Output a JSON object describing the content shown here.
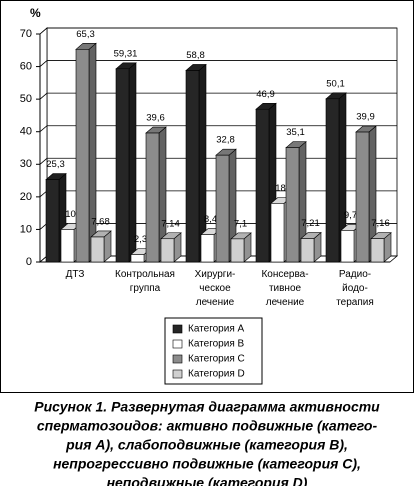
{
  "chart_data": {
    "type": "bar3d",
    "y_label": "%",
    "categories": [
      "ДТЗ",
      "Контрольная\nгруппа",
      "Хирурги-\nческое\nлечение",
      "Консерва-\nтивное\nлечение",
      "Радио-\nйодо-\nтерапия"
    ],
    "series": [
      {
        "name": "Категория A",
        "color": "#262626",
        "values": [
          25.3,
          59.31,
          58.8,
          46.9,
          50.1
        ],
        "value_labels": [
          "25,3",
          "59,31",
          "58,8",
          "46,9",
          "50,1"
        ]
      },
      {
        "name": "Категория B",
        "color": "#ffffff",
        "values": [
          10,
          2.3,
          8.4,
          18,
          9.7
        ],
        "value_labels": [
          "10",
          "2,3",
          "8,4",
          "18",
          "9,7"
        ]
      },
      {
        "name": "Категория C",
        "color": "#8c8c8c",
        "values": [
          65.3,
          39.6,
          32.8,
          35.1,
          39.9
        ],
        "value_labels": [
          "65,3",
          "39,6",
          "32,8",
          "35,1",
          "39,9"
        ]
      },
      {
        "name": "Категория D",
        "color": "#d0d0d0",
        "values": [
          7.68,
          7.14,
          7.1,
          7.21,
          7.16
        ],
        "value_labels": [
          "7,68",
          "7,14",
          "7,1",
          "7,21",
          "7,16"
        ]
      }
    ],
    "ylim": [
      0,
      70
    ],
    "yticks": [
      0,
      10,
      20,
      30,
      40,
      50,
      60,
      70
    ],
    "grid": true,
    "caption": [
      "Рисунок 1. Развернутая диаграмма активности",
      "сперматозоидов: активно подвижные (катего-",
      "рия A), слабоподвижные (категория B),",
      "непрогрессивно подвижные (категория C),",
      "неподвижные (категория D)"
    ]
  }
}
